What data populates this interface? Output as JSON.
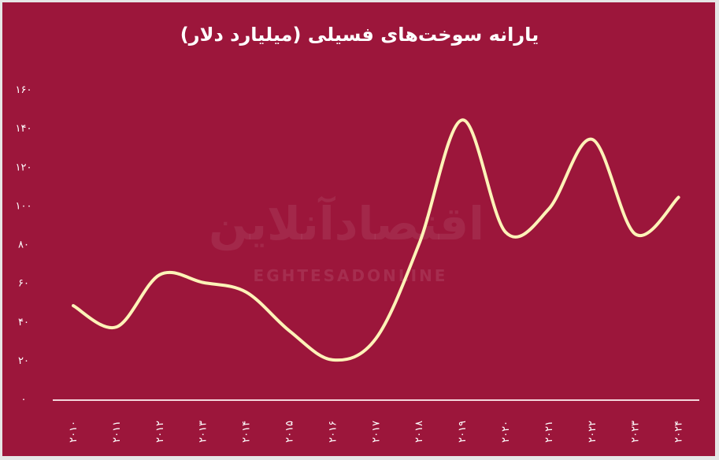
{
  "chart_data": {
    "type": "line",
    "title": "یارانه سوخت‌های فسیلی (میلیارد دلار)",
    "xlabel": "",
    "ylabel": "",
    "categories": [
      "۲۰۱۰",
      "۲۰۱۱",
      "۲۰۱۲",
      "۲۰۱۳",
      "۲۰۱۴",
      "۲۰۱۵",
      "۲۰۱۶",
      "۲۰۱۷",
      "۲۰۱۸",
      "۲۰۱۹",
      "۲۰۲۰",
      "۲۰۲۱",
      "۲۰۲۲",
      "۲۰۲۳",
      "۲۰۲۴"
    ],
    "x": [
      2010,
      2011,
      2012,
      2013,
      2014,
      2015,
      2016,
      2017,
      2018,
      2019,
      2020,
      2021,
      2022,
      2023,
      2024
    ],
    "values": [
      48,
      37,
      64,
      60,
      55,
      35,
      20,
      31,
      80,
      144,
      86,
      98,
      134,
      85,
      104
    ],
    "ylim": [
      0,
      160
    ],
    "yticks": [
      0,
      20,
      40,
      60,
      80,
      100,
      120,
      140,
      160
    ],
    "ytick_labels": [
      "۰",
      "۲۰",
      "۴۰",
      "۶۰",
      "۸۰",
      "۱۰۰",
      "۱۲۰",
      "۱۴۰",
      "۱۶۰"
    ],
    "grid": false,
    "line_color": "#fdf3b8",
    "background_color": "#9c163b"
  },
  "watermark": {
    "text": "اقتصادآنلاین",
    "latin": "EGHTESADONLINE"
  }
}
